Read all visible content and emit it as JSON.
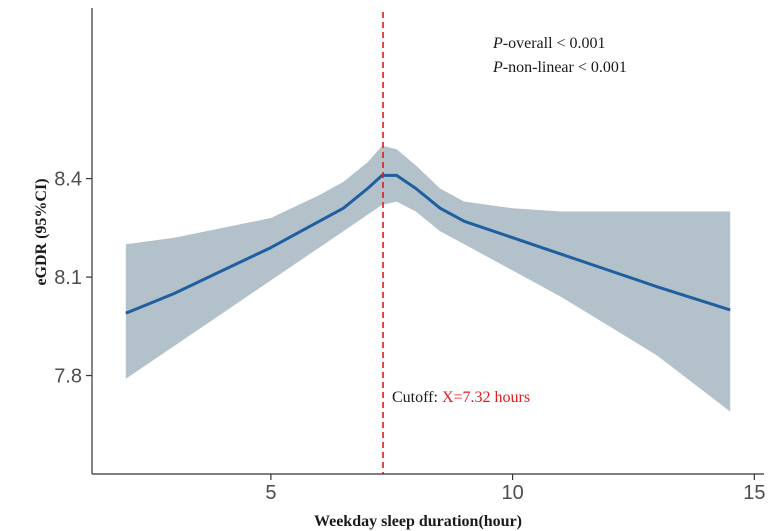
{
  "chart_data": {
    "type": "line",
    "xlabel": "Weekday sleep duration(hour)",
    "ylabel": "eGDR (95%CI)",
    "xlim": [
      1.3,
      15.2
    ],
    "ylim": [
      7.5,
      8.92
    ],
    "x_ticks": [
      5,
      10,
      15
    ],
    "y_ticks": [
      7.8,
      8.1,
      8.4
    ],
    "x_tick_labels": [
      "5",
      "10",
      "15"
    ],
    "y_tick_labels": [
      "7.8",
      "8.1",
      "8.4"
    ],
    "grid": false,
    "cutoff": {
      "x": 7.32,
      "label_prefix": "Cutoff:",
      "label_value": "X=7.32 hours",
      "line_color": "#e41a1c"
    },
    "p_value_annotations": [
      {
        "italic": "P",
        "text": "-overall < 0.001"
      },
      {
        "italic": "P",
        "text": "-non-linear < 0.001"
      }
    ],
    "series": [
      {
        "x": [
          2.0,
          3.0,
          4.0,
          5.0,
          6.0,
          6.5,
          7.0,
          7.3,
          7.6,
          8.0,
          8.5,
          9.0,
          10.0,
          11.0,
          12.0,
          13.0,
          14.5
        ],
        "y": [
          7.99,
          8.05,
          8.12,
          8.19,
          8.27,
          8.31,
          8.37,
          8.41,
          8.41,
          8.37,
          8.31,
          8.27,
          8.22,
          8.17,
          8.12,
          8.07,
          8.0
        ],
        "lower": [
          7.79,
          7.89,
          7.99,
          8.09,
          8.19,
          8.24,
          8.29,
          8.32,
          8.33,
          8.3,
          8.24,
          8.2,
          8.12,
          8.04,
          7.95,
          7.86,
          7.69
        ],
        "upper": [
          8.2,
          8.22,
          8.25,
          8.28,
          8.35,
          8.39,
          8.45,
          8.5,
          8.49,
          8.44,
          8.37,
          8.33,
          8.31,
          8.3,
          8.3,
          8.3,
          8.3
        ],
        "line_color": "#1f5fa0",
        "ribbon_color": "#b3c1cb"
      }
    ]
  }
}
